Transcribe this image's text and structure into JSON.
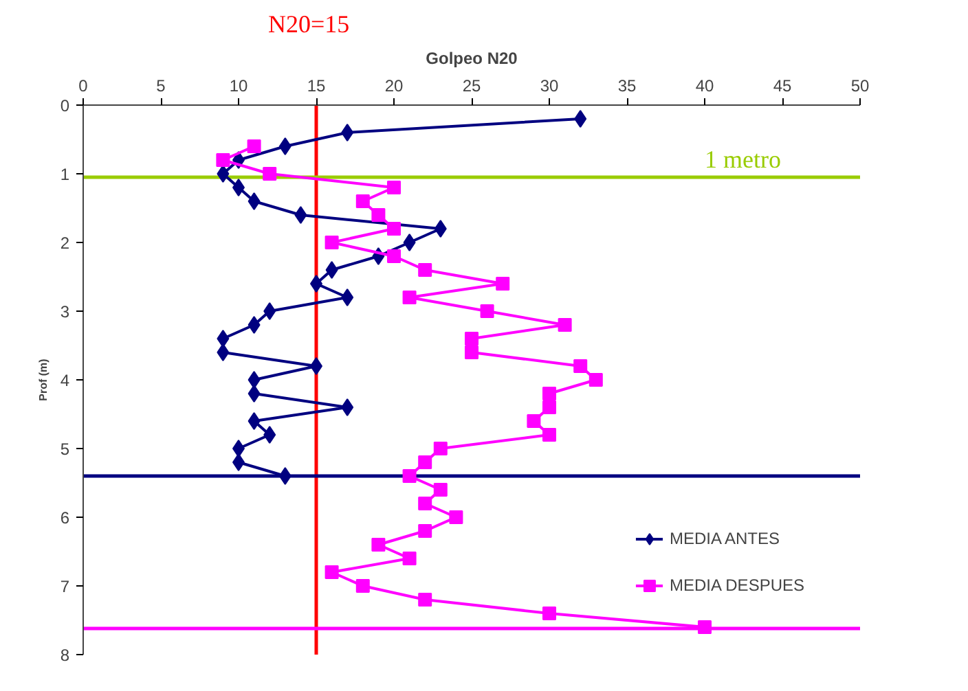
{
  "chart_data": {
    "type": "line",
    "xlabel": "Golpeo N20",
    "ylabel": "Prof (m)",
    "xlim": [
      0,
      50
    ],
    "xticks": [
      0,
      5,
      10,
      15,
      20,
      25,
      30,
      35,
      40,
      45,
      50
    ],
    "ylim": [
      8,
      0
    ],
    "yticks": [
      0,
      1,
      2,
      3,
      4,
      5,
      6,
      7,
      8
    ],
    "grid": false,
    "legend": "bottom right",
    "series": [
      {
        "name": "MEDIA ANTES",
        "color": "#000080",
        "marker": "diamond",
        "x": [
          32,
          17,
          13,
          10,
          9,
          10,
          11,
          14,
          23,
          21,
          19,
          16,
          15,
          17,
          12,
          11,
          9,
          9,
          15,
          11,
          11,
          17,
          11,
          12,
          10,
          10,
          13
        ],
        "values": [
          0.2,
          0.4,
          0.6,
          0.8,
          1.0,
          1.2,
          1.4,
          1.6,
          1.8,
          2.0,
          2.2,
          2.4,
          2.6,
          2.8,
          3.0,
          3.2,
          3.4,
          3.6,
          3.8,
          4.0,
          4.2,
          4.4,
          4.6,
          4.8,
          5.0,
          5.2,
          5.4
        ]
      },
      {
        "name": "MEDIA DESPUES",
        "color": "#ff00ff",
        "marker": "square",
        "x": [
          11,
          9,
          12,
          20,
          18,
          19,
          20,
          16,
          20,
          22,
          27,
          21,
          26,
          31,
          25,
          25,
          32,
          33,
          30,
          30,
          29,
          30,
          23,
          22,
          21,
          23,
          22,
          24,
          22,
          19,
          21,
          16,
          18,
          22,
          30,
          40
        ],
        "values": [
          0.6,
          0.8,
          1.0,
          1.2,
          1.4,
          1.6,
          1.8,
          2.0,
          2.2,
          2.4,
          2.6,
          2.8,
          3.0,
          3.2,
          3.4,
          3.6,
          3.8,
          4.0,
          4.2,
          4.4,
          4.6,
          4.8,
          5.0,
          5.2,
          5.4,
          5.6,
          5.8,
          6.0,
          6.2,
          6.4,
          6.6,
          6.8,
          7.0,
          7.2,
          7.4,
          7.6
        ]
      }
    ],
    "ref_lines": [
      {
        "axis": "x",
        "value": 15,
        "label": "N20=15",
        "color": "#ff0000"
      },
      {
        "axis": "y",
        "value": 1.05,
        "label": "1 metro",
        "color": "#99cc00"
      },
      {
        "axis": "y",
        "value": 5.4,
        "color": "#000080"
      },
      {
        "axis": "y",
        "value": 7.62,
        "color": "#ff00ff"
      }
    ]
  }
}
